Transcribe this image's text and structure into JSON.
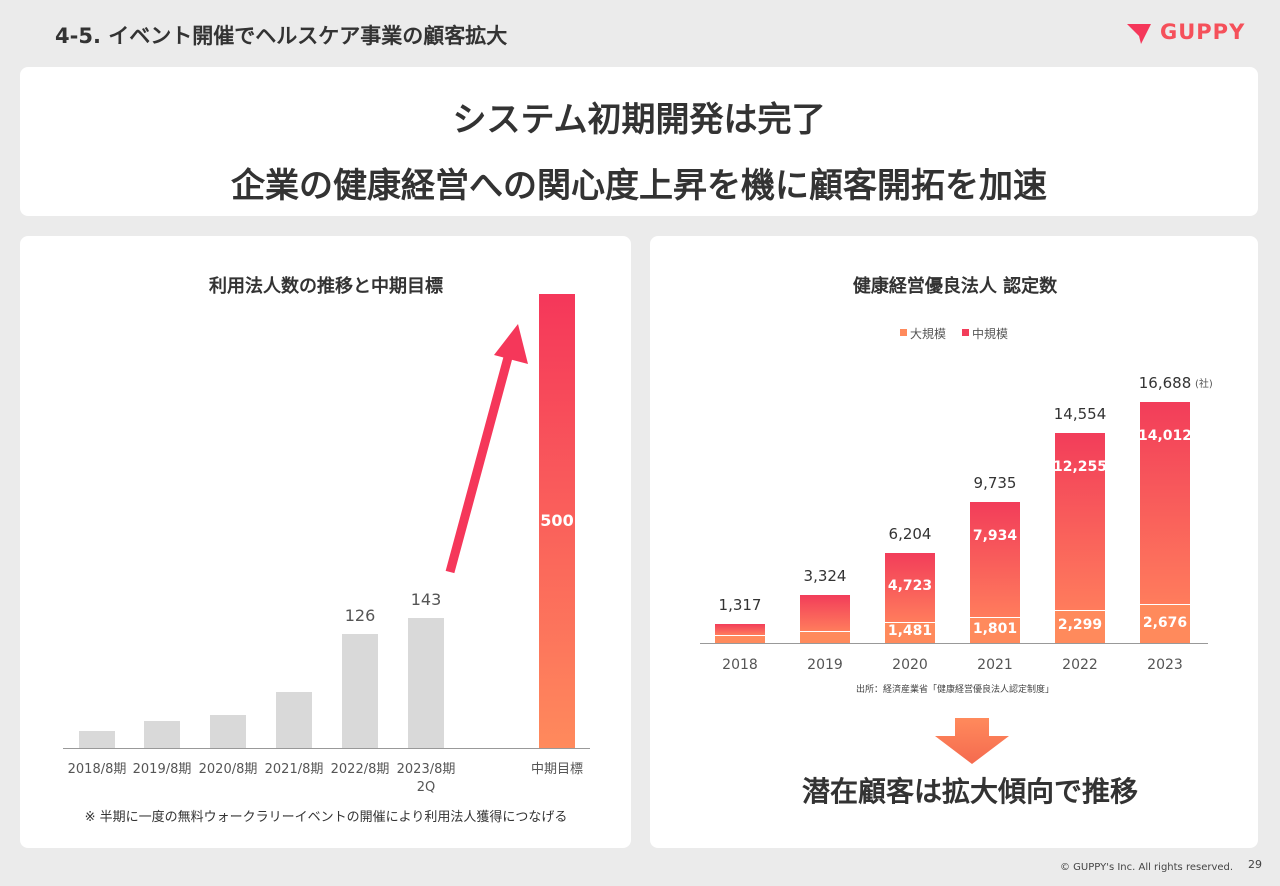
{
  "header": {
    "title": "4-5. イベント開催でヘルスケア事業の顧客拡大",
    "logo": "GUPPY"
  },
  "headline": {
    "line1": "システム初期開発は完了",
    "line2": "企業の健康経営への関心度上昇を機に顧客開拓を加速"
  },
  "chart_data": [
    {
      "type": "bar",
      "title": "利用法人数の推移と中期目標",
      "categories": [
        "2018/8期",
        "2019/8期",
        "2020/8期",
        "2021/8期",
        "2022/8期",
        "2023/8期\n2Q",
        "中期目標"
      ],
      "values": [
        19,
        30,
        36,
        62,
        126,
        143,
        500
      ],
      "value_labels": [
        null,
        null,
        null,
        null,
        "126",
        "143",
        "500"
      ],
      "colors": [
        "#d9d9d9",
        "#d9d9d9",
        "#d9d9d9",
        "#d9d9d9",
        "#d9d9d9",
        "#d9d9d9",
        "#f5375a"
      ],
      "ylim": [
        0,
        500
      ],
      "note": "※ 半期に一度の無料ウォークラリーイベントの開催により利用法人獲得につなげる"
    },
    {
      "type": "stacked-bar",
      "title": "健康経営優良法人 認定数",
      "categories": [
        "2018",
        "2019",
        "2020",
        "2021",
        "2022",
        "2023"
      ],
      "series": [
        {
          "name": "大規模",
          "color": "#ff8a5c",
          "values": [
            541,
            821,
            1481,
            1801,
            2299,
            2676
          ],
          "value_labels": [
            null,
            null,
            "1,481",
            "1,801",
            "2,299",
            "2,676"
          ]
        },
        {
          "name": "中規模",
          "color": "#f23d5a",
          "values": [
            776,
            2503,
            4723,
            7934,
            12255,
            14012
          ],
          "value_labels": [
            null,
            null,
            "4,723",
            "7,934",
            "12,255",
            "14,012"
          ]
        }
      ],
      "totals": [
        1317,
        3324,
        6204,
        9735,
        14554,
        16688
      ],
      "total_labels": [
        "1,317",
        "3,324",
        "6,204",
        "9,735",
        "14,554",
        "16,688"
      ],
      "unit": "(社)",
      "ylim": [
        0,
        18000
      ],
      "source": "出所：経済産業省「健康経営優良法人認定制度」"
    }
  ],
  "conclusion": "潜在顧客は拡大傾向で推移",
  "footer": {
    "copyright": "© GUPPY's Inc. All rights reserved.",
    "page": "29"
  }
}
